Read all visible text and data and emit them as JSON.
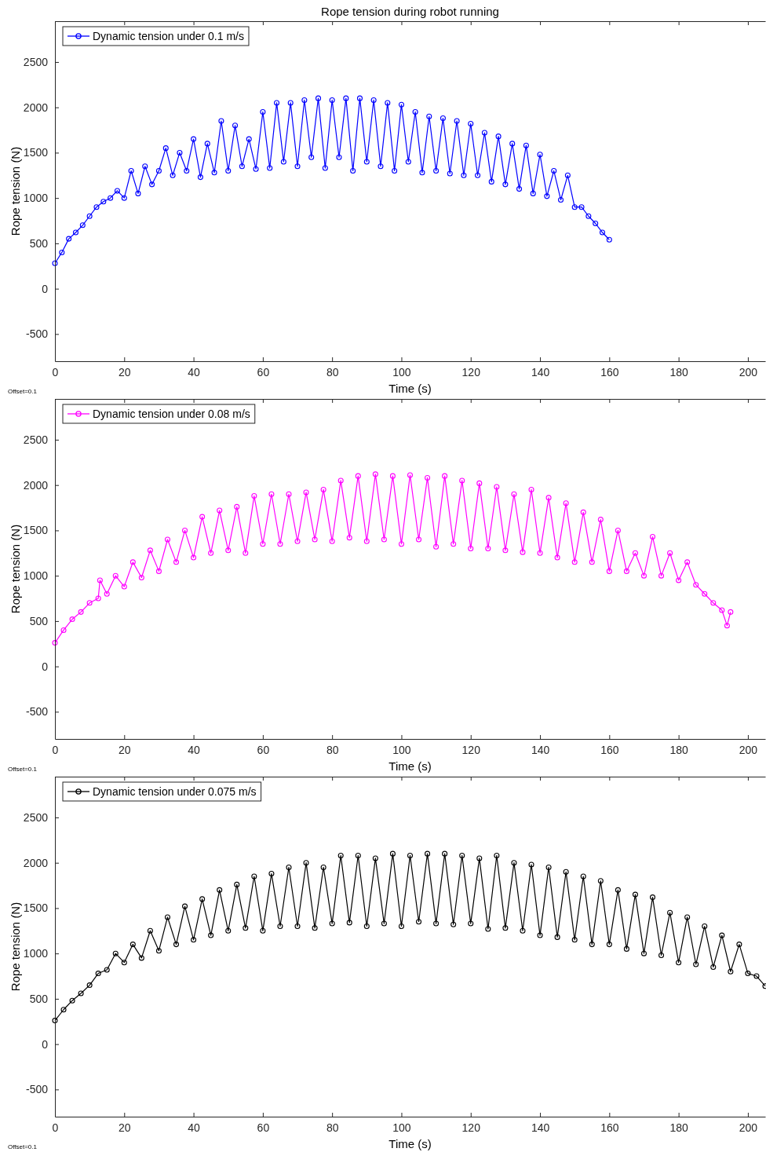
{
  "chart_data": [
    {
      "type": "line",
      "title": "Rope tension during robot running",
      "xlabel": "Time (s)",
      "ylabel": "Rope tension (N)",
      "annotations": [
        "Offset=0.1"
      ],
      "xlim": [
        0,
        205
      ],
      "ylim": [
        -800,
        2950
      ],
      "xticks": [
        0,
        20,
        40,
        60,
        80,
        100,
        120,
        140,
        160,
        180,
        200
      ],
      "yticks": [
        -500,
        0,
        500,
        1000,
        1500,
        2000,
        2500
      ],
      "grid": false,
      "legend": "top left",
      "marker": "circle",
      "line_style": "solid",
      "series": [
        {
          "name": "Dynamic tension under 0.1 m/s",
          "color": "#0000ff",
          "x": [
            0,
            2,
            4,
            6,
            8,
            10,
            12,
            14,
            16,
            18,
            20,
            22,
            24,
            26,
            28,
            30,
            32,
            34,
            36,
            38,
            40,
            42,
            44,
            46,
            48,
            50,
            52,
            54,
            56,
            58,
            60,
            62,
            64,
            66,
            68,
            70,
            72,
            74,
            76,
            78,
            80,
            82,
            84,
            86,
            88,
            90,
            92,
            94,
            96,
            98,
            100,
            102,
            104,
            106,
            108,
            110,
            112,
            114,
            116,
            118,
            120,
            122,
            124,
            126,
            128,
            130,
            132,
            134,
            136,
            138,
            140,
            142,
            144,
            146,
            148,
            150,
            152,
            154,
            156,
            158,
            160
          ],
          "values": [
            280,
            400,
            550,
            620,
            700,
            800,
            900,
            960,
            1000,
            1080,
            1000,
            1300,
            1050,
            1350,
            1150,
            1300,
            1550,
            1250,
            1500,
            1300,
            1650,
            1230,
            1600,
            1280,
            1850,
            1300,
            1800,
            1350,
            1650,
            1320,
            1950,
            1330,
            2050,
            1400,
            2050,
            1350,
            2080,
            1450,
            2100,
            1330,
            2080,
            1450,
            2100,
            1300,
            2100,
            1400,
            2080,
            1350,
            2050,
            1300,
            2030,
            1400,
            1950,
            1280,
            1900,
            1300,
            1880,
            1270,
            1850,
            1250,
            1820,
            1250,
            1720,
            1180,
            1680,
            1150,
            1600,
            1100,
            1580,
            1050,
            1480,
            1020,
            1300,
            980,
            1250,
            900,
            900,
            800,
            720,
            620,
            540
          ]
        }
      ]
    },
    {
      "type": "line",
      "xlabel": "Time (s)",
      "ylabel": "Rope tension (N)",
      "annotations": [
        "Offset=0.1"
      ],
      "xlim": [
        0,
        205
      ],
      "ylim": [
        -800,
        2950
      ],
      "xticks": [
        0,
        20,
        40,
        60,
        80,
        100,
        120,
        140,
        160,
        180,
        200
      ],
      "yticks": [
        -500,
        0,
        500,
        1000,
        1500,
        2000,
        2500
      ],
      "grid": false,
      "legend": "top left",
      "marker": "circle",
      "line_style": "solid",
      "series": [
        {
          "name": "Dynamic tension under 0.08 m/s",
          "color": "#ff00ff",
          "x": [
            0,
            2.5,
            5,
            7.5,
            10,
            12.5,
            13,
            15,
            17.5,
            20,
            22.5,
            25,
            27.5,
            30,
            32.5,
            35,
            37.5,
            40,
            42.5,
            45,
            47.5,
            50,
            52.5,
            55,
            57.5,
            60,
            62.5,
            65,
            67.5,
            70,
            72.5,
            75,
            77.5,
            80,
            82.5,
            85,
            87.5,
            90,
            92.5,
            95,
            97.5,
            100,
            102.5,
            105,
            107.5,
            110,
            112.5,
            115,
            117.5,
            120,
            122.5,
            125,
            127.5,
            130,
            132.5,
            135,
            137.5,
            140,
            142.5,
            145,
            147.5,
            150,
            152.5,
            155,
            157.5,
            160,
            162.5,
            165,
            167.5,
            170,
            172.5,
            175,
            177.5,
            180,
            182.5,
            185,
            187.5,
            190,
            192.5,
            194,
            195
          ],
          "values": [
            260,
            400,
            520,
            600,
            700,
            750,
            950,
            800,
            1000,
            880,
            1150,
            980,
            1280,
            1050,
            1400,
            1150,
            1500,
            1200,
            1650,
            1250,
            1720,
            1280,
            1760,
            1250,
            1880,
            1350,
            1900,
            1350,
            1900,
            1380,
            1920,
            1400,
            1950,
            1380,
            2050,
            1420,
            2100,
            1380,
            2120,
            1400,
            2100,
            1350,
            2110,
            1400,
            2080,
            1320,
            2100,
            1350,
            2050,
            1300,
            2020,
            1300,
            1980,
            1280,
            1900,
            1260,
            1950,
            1250,
            1860,
            1200,
            1800,
            1150,
            1700,
            1150,
            1620,
            1050,
            1500,
            1050,
            1250,
            1000,
            1430,
            1000,
            1250,
            950,
            1150,
            900,
            800,
            700,
            620,
            450,
            600
          ]
        }
      ]
    },
    {
      "type": "line",
      "xlabel": "Time (s)",
      "ylabel": "Rope tension (N)",
      "annotations": [
        "Offset=0.1"
      ],
      "xlim": [
        0,
        205
      ],
      "ylim": [
        -800,
        2950
      ],
      "xticks": [
        0,
        20,
        40,
        60,
        80,
        100,
        120,
        140,
        160,
        180,
        200
      ],
      "yticks": [
        -500,
        0,
        500,
        1000,
        1500,
        2000,
        2500
      ],
      "grid": false,
      "legend": "top left",
      "marker": "circle",
      "line_style": "solid",
      "series": [
        {
          "name": "Dynamic tension under 0.075 m/s",
          "color": "#000000",
          "x": [
            0,
            2.5,
            5,
            7.5,
            10,
            12.5,
            15,
            17.5,
            20,
            22.5,
            25,
            27.5,
            30,
            32.5,
            35,
            37.5,
            40,
            42.5,
            45,
            47.5,
            50,
            52.5,
            55,
            57.5,
            60,
            62.5,
            65,
            67.5,
            70,
            72.5,
            75,
            77.5,
            80,
            82.5,
            85,
            87.5,
            90,
            92.5,
            95,
            97.5,
            100,
            102.5,
            105,
            107.5,
            110,
            112.5,
            115,
            117.5,
            120,
            122.5,
            125,
            127.5,
            130,
            132.5,
            135,
            137.5,
            140,
            142.5,
            145,
            147.5,
            150,
            152.5,
            155,
            157.5,
            160,
            162.5,
            165,
            167.5,
            170,
            172.5,
            175,
            177.5,
            180,
            182.5,
            185,
            187.5,
            190,
            192.5,
            195,
            197.5,
            200,
            202.5,
            205
          ],
          "values": [
            260,
            380,
            480,
            560,
            650,
            780,
            820,
            1000,
            900,
            1100,
            950,
            1250,
            1030,
            1400,
            1100,
            1520,
            1150,
            1600,
            1200,
            1700,
            1250,
            1760,
            1280,
            1850,
            1250,
            1880,
            1300,
            1950,
            1300,
            2000,
            1280,
            1950,
            1330,
            2080,
            1340,
            2080,
            1300,
            2050,
            1330,
            2100,
            1300,
            2080,
            1350,
            2100,
            1330,
            2100,
            1320,
            2080,
            1330,
            2050,
            1270,
            2080,
            1280,
            2000,
            1250,
            1980,
            1200,
            1950,
            1180,
            1900,
            1150,
            1850,
            1100,
            1800,
            1100,
            1700,
            1050,
            1650,
            1000,
            1620,
            980,
            1450,
            900,
            1400,
            880,
            1300,
            850,
            1200,
            800,
            1100,
            780,
            750,
            640
          ]
        }
      ]
    }
  ]
}
